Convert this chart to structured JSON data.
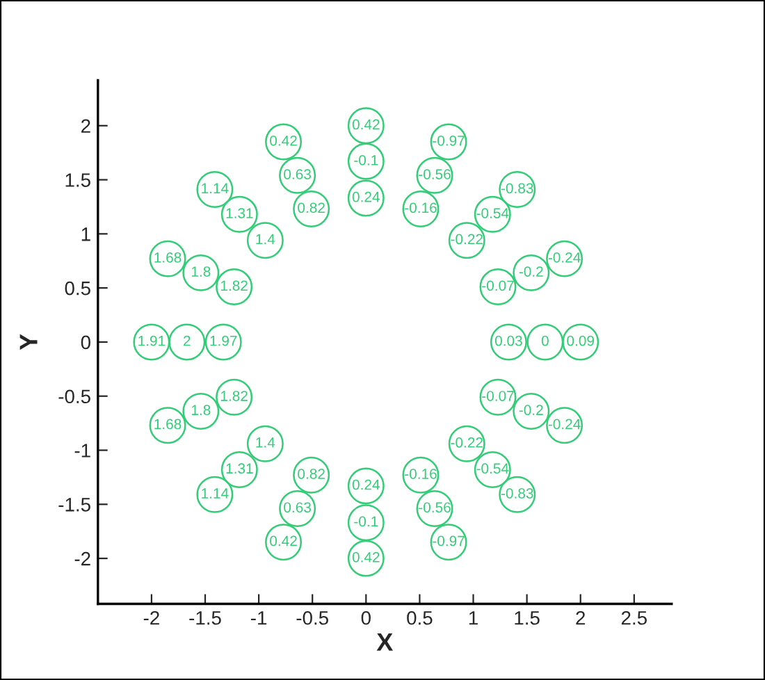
{
  "chart_data": {
    "type": "scatter",
    "xlabel": "X",
    "ylabel": "Y",
    "x": [
      1.33,
      1.67,
      2,
      1.23,
      1.54,
      1.85,
      0.94,
      1.18,
      1.41,
      0.51,
      0.64,
      0.77,
      0,
      0,
      0,
      -0.51,
      -0.64,
      -0.77,
      -0.94,
      -1.18,
      -1.41,
      -1.23,
      -1.54,
      -1.85,
      -1.33,
      -1.67,
      -2,
      -1.23,
      -1.54,
      -1.85,
      -0.94,
      -1.18,
      -1.41,
      -0.51,
      -0.64,
      -0.77,
      0,
      0,
      0,
      0.51,
      0.64,
      0.77,
      0.94,
      1.18,
      1.41,
      1.23,
      1.54,
      1.85
    ],
    "series": [
      {
        "color": "#33cc77",
        "marker": "circle",
        "values": [
          0,
          0,
          0,
          0.51,
          0.64,
          0.77,
          0.94,
          1.18,
          1.41,
          1.23,
          1.54,
          1.85,
          1.33,
          1.67,
          2,
          1.23,
          1.54,
          1.85,
          0.94,
          1.18,
          1.41,
          0.51,
          0.64,
          0.77,
          0,
          0,
          0,
          -0.51,
          -0.64,
          -0.77,
          -0.94,
          -1.18,
          -1.41,
          -1.23,
          -1.54,
          -1.85,
          -1.33,
          -1.67,
          -2,
          -1.23,
          -1.54,
          -1.85,
          -0.94,
          -1.18,
          -1.41,
          -0.51,
          -0.64,
          -0.77
        ]
      }
    ],
    "annotations": [
      {
        "text": "0.03",
        "x": 1.33,
        "y": 0
      },
      {
        "text": "0",
        "x": 1.67,
        "y": 0
      },
      {
        "text": "0.09",
        "x": 2,
        "y": 0
      },
      {
        "text": "-0.07",
        "x": 1.23,
        "y": 0.51
      },
      {
        "text": "-0.2",
        "x": 1.54,
        "y": 0.64
      },
      {
        "text": "-0.24",
        "x": 1.85,
        "y": 0.77
      },
      {
        "text": "-0.22",
        "x": 0.94,
        "y": 0.94
      },
      {
        "text": "-0.54",
        "x": 1.18,
        "y": 1.18
      },
      {
        "text": "-0.83",
        "x": 1.41,
        "y": 1.41
      },
      {
        "text": "-0.16",
        "x": 0.51,
        "y": 1.23
      },
      {
        "text": "-0.56",
        "x": 0.64,
        "y": 1.54
      },
      {
        "text": "-0.97",
        "x": 0.77,
        "y": 1.85
      },
      {
        "text": "0.24",
        "x": 0,
        "y": 1.33
      },
      {
        "text": "-0.1",
        "x": 0,
        "y": 1.67
      },
      {
        "text": "0.42",
        "x": 0,
        "y": 2
      },
      {
        "text": "0.82",
        "x": -0.51,
        "y": 1.23
      },
      {
        "text": "0.63",
        "x": -0.64,
        "y": 1.54
      },
      {
        "text": "0.42",
        "x": -0.77,
        "y": 1.85
      },
      {
        "text": "1.4",
        "x": -0.94,
        "y": 0.94
      },
      {
        "text": "1.31",
        "x": -1.18,
        "y": 1.18
      },
      {
        "text": "1.14",
        "x": -1.41,
        "y": 1.41
      },
      {
        "text": "1.82",
        "x": -1.23,
        "y": 0.51
      },
      {
        "text": "1.8",
        "x": -1.54,
        "y": 0.64
      },
      {
        "text": "1.68",
        "x": -1.85,
        "y": 0.77
      },
      {
        "text": "1.97",
        "x": -1.33,
        "y": 0
      },
      {
        "text": "2",
        "x": -1.67,
        "y": 0
      },
      {
        "text": "1.91",
        "x": -2,
        "y": 0
      },
      {
        "text": "1.82",
        "x": -1.23,
        "y": -0.51
      },
      {
        "text": "1.8",
        "x": -1.54,
        "y": -0.64
      },
      {
        "text": "1.68",
        "x": -1.85,
        "y": -0.77
      },
      {
        "text": "1.4",
        "x": -0.94,
        "y": -0.94
      },
      {
        "text": "1.31",
        "x": -1.18,
        "y": -1.18
      },
      {
        "text": "1.14",
        "x": -1.41,
        "y": -1.41
      },
      {
        "text": "0.82",
        "x": -0.51,
        "y": -1.23
      },
      {
        "text": "0.63",
        "x": -0.64,
        "y": -1.54
      },
      {
        "text": "0.42",
        "x": -0.77,
        "y": -1.85
      },
      {
        "text": "0.24",
        "x": 0,
        "y": -1.33
      },
      {
        "text": "-0.1",
        "x": 0,
        "y": -1.67
      },
      {
        "text": "0.42",
        "x": 0,
        "y": -2
      },
      {
        "text": "-0.16",
        "x": 0.51,
        "y": -1.23
      },
      {
        "text": "-0.56",
        "x": 0.64,
        "y": -1.54
      },
      {
        "text": "-0.97",
        "x": 0.77,
        "y": -1.85
      },
      {
        "text": "-0.22",
        "x": 0.94,
        "y": -0.94
      },
      {
        "text": "-0.54",
        "x": 1.18,
        "y": -1.18
      },
      {
        "text": "-0.83",
        "x": 1.41,
        "y": -1.41
      },
      {
        "text": "-0.07",
        "x": 1.23,
        "y": -0.51
      },
      {
        "text": "-0.2",
        "x": 1.54,
        "y": -0.64
      },
      {
        "text": "-0.24",
        "x": 1.85,
        "y": -0.77
      }
    ],
    "xlim": [
      -2.5,
      2.85
    ],
    "ylim": [
      -2.42,
      2.42
    ],
    "xticks": [
      -2,
      -1.5,
      -1,
      -0.5,
      0,
      0.5,
      1,
      1.5,
      2,
      2.5
    ],
    "yticks": [
      -2,
      -1.5,
      -1,
      -0.5,
      0,
      0.5,
      1,
      1.5,
      2
    ],
    "grid": false,
    "legend": false
  }
}
